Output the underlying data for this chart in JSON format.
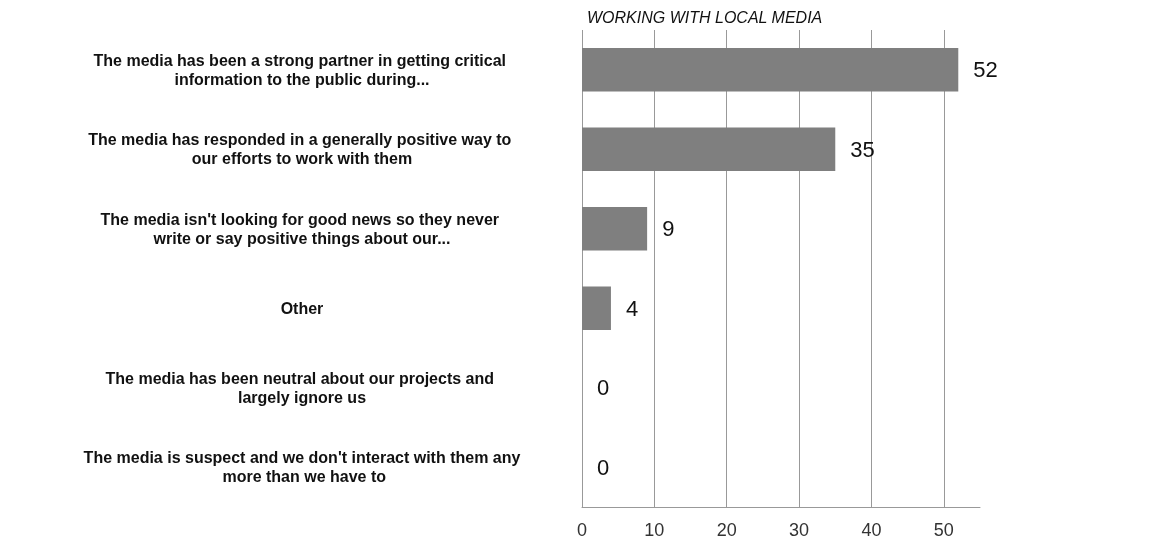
{
  "chart_data": {
    "type": "bar",
    "orientation": "horizontal",
    "title": "WORKING WITH LOCAL MEDIA",
    "categories": [
      "The media has been a strong partner in getting critical information to the public during...",
      "The media has responded in a generally positive way to our efforts to work with them",
      "The media isn't looking for good news so they never write or say positive things about our...",
      "Other",
      "The media has been neutral about our projects and largely ignore us",
      "The media is suspect and we don't interact with them any more than we have to"
    ],
    "values": [
      52,
      35,
      9,
      4,
      0,
      0
    ],
    "color": "#7f7f7f",
    "xlim": [
      0,
      55
    ],
    "xticks": [
      0,
      10,
      20,
      30,
      40,
      50
    ],
    "grid": "x",
    "data_labels": true
  }
}
